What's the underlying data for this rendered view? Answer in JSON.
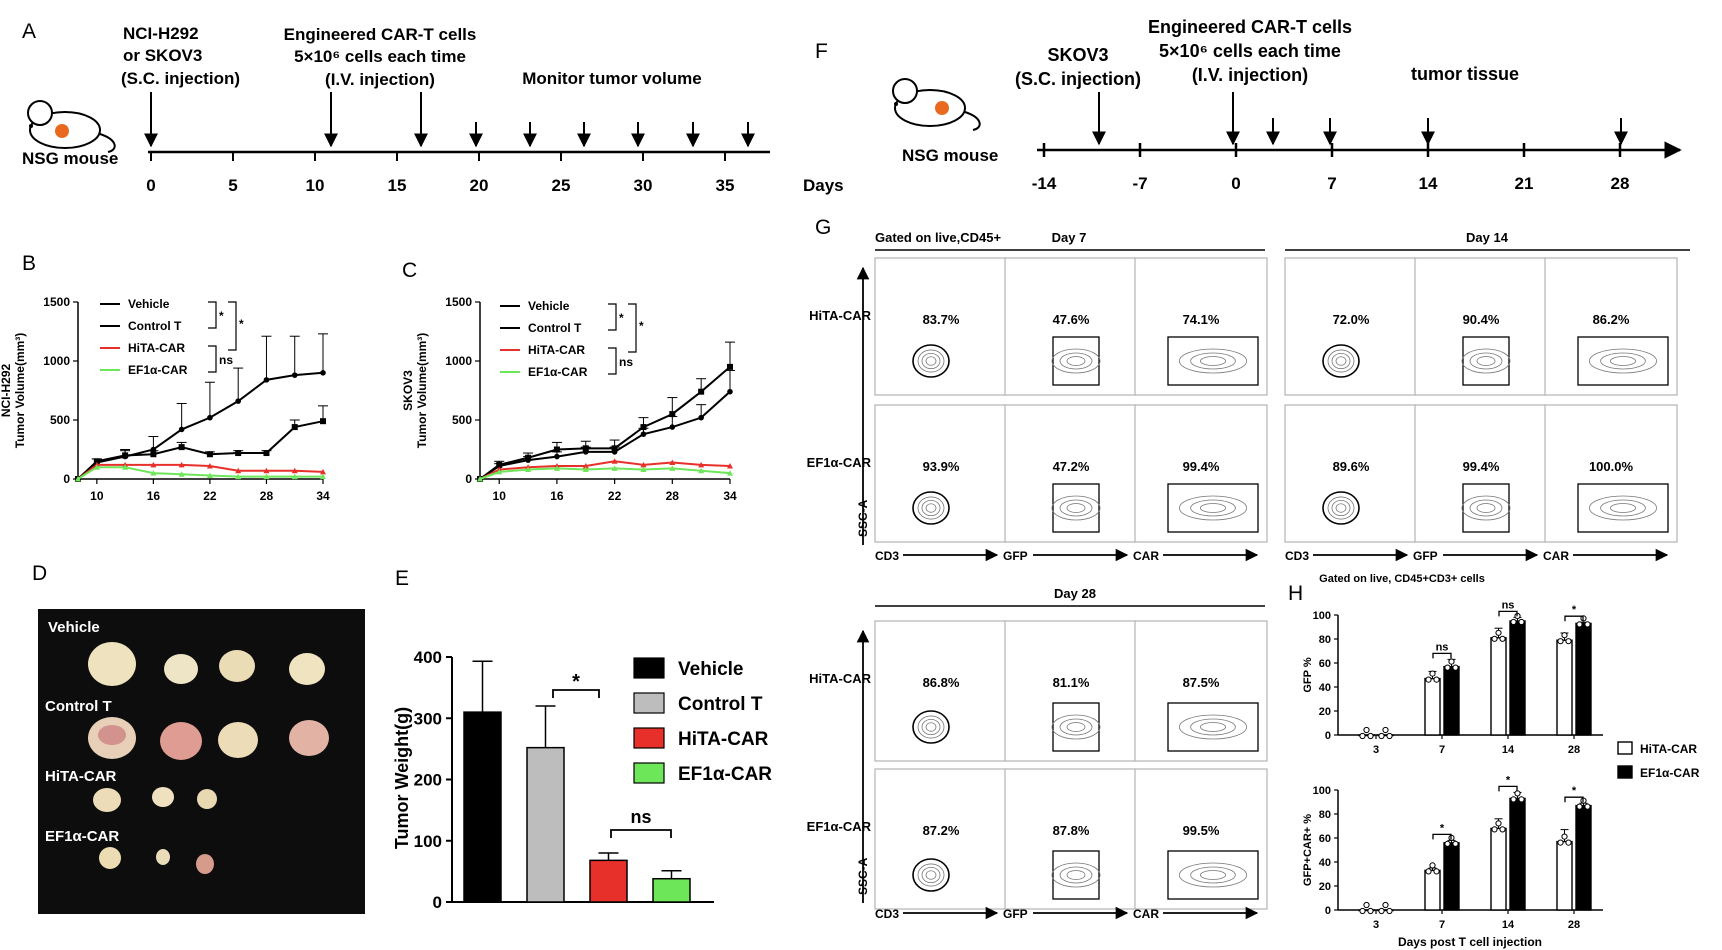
{
  "panels": {
    "A": {
      "letter": "A",
      "mouse_label": "NSG mouse",
      "inj1": [
        "NCI-H292",
        "or SKOV3",
        "(S.C. injection)"
      ],
      "inj2": [
        "Engineered CAR-T cells",
        "5×10⁶ cells each time",
        "(I.V. injection)"
      ],
      "monitor": "Monitor tumor volume",
      "ticks": [
        "0",
        "5",
        "10",
        "15",
        "20",
        "25",
        "30",
        "35"
      ],
      "unit": "Days"
    },
    "F": {
      "letter": "F",
      "mouse_label": "NSG mouse",
      "inj1": [
        "SKOV3",
        "(S.C. injection)"
      ],
      "inj2": [
        "Engineered CAR-T cells",
        "5×10⁶ cells each time",
        "(I.V. injection)"
      ],
      "tissue": "tumor tissue",
      "ticks": [
        "-14",
        "-7",
        "0",
        "7",
        "14",
        "21",
        "28"
      ]
    },
    "D": {
      "letter": "D",
      "rows": [
        "Vehicle",
        "Control T",
        "HiTA-CAR",
        "EF1α-CAR"
      ]
    },
    "G": {
      "letter": "G",
      "gate": "Gated on live,CD45+",
      "day7": "Day 7",
      "day14": "Day 14",
      "day28": "Day 28",
      "row_labels": [
        "HiTA-CAR",
        "EF1α-CAR"
      ],
      "yaxis": "SSC-A",
      "axes": [
        "CD3",
        "GFP",
        "CAR"
      ],
      "top": {
        "day7": [
          [
            "83.7%",
            "47.6%",
            "74.1%"
          ],
          [
            "93.9%",
            "47.2%",
            "99.4%"
          ]
        ],
        "day14": [
          [
            "72.0%",
            "90.4%",
            "86.2%"
          ],
          [
            "89.6%",
            "99.4%",
            "100.0%"
          ]
        ]
      },
      "bottom": {
        "day28": [
          [
            "86.8%",
            "81.1%",
            "87.5%"
          ],
          [
            "87.2%",
            "87.8%",
            "99.5%"
          ]
        ]
      }
    }
  },
  "colors": {
    "vehicle": "#000000",
    "control": "#bdbdbd",
    "hita": "#e8302a",
    "ef1a": "#6ee65a"
  },
  "chart_data": [
    {
      "panel": "B",
      "type": "line",
      "ylabel": [
        "NCI-H292",
        "Tumor Volume(mm³)"
      ],
      "x": [
        8,
        10,
        13,
        16,
        19,
        22,
        25,
        28,
        31,
        34
      ],
      "x_ticks": [
        "10",
        "16",
        "22",
        "28",
        "34"
      ],
      "y_ticks": [
        "0",
        "500",
        "1000",
        "1500"
      ],
      "ylim": [
        0,
        1500
      ],
      "series": [
        {
          "name": "Vehicle",
          "values": [
            0,
            140,
            190,
            250,
            420,
            520,
            660,
            840,
            880,
            900
          ],
          "errors": [
            0,
            30,
            60,
            110,
            220,
            300,
            280,
            370,
            330,
            330
          ]
        },
        {
          "name": "Control T",
          "values": [
            0,
            150,
            200,
            210,
            270,
            210,
            220,
            220,
            440,
            490
          ],
          "errors": [
            0,
            20,
            40,
            30,
            40,
            20,
            20,
            20,
            60,
            130
          ]
        },
        {
          "name": "HiTA-CAR",
          "values": [
            0,
            120,
            120,
            120,
            120,
            110,
            70,
            70,
            70,
            60
          ]
        },
        {
          "name": "EF1α-CAR",
          "values": [
            0,
            100,
            100,
            50,
            40,
            30,
            20,
            20,
            20,
            20
          ]
        }
      ],
      "stats": [
        "*",
        "*",
        "ns"
      ]
    },
    {
      "panel": "C",
      "type": "line",
      "ylabel": [
        "SKOV3",
        "Tumor Volume(mm³)"
      ],
      "x": [
        8,
        10,
        13,
        16,
        19,
        22,
        25,
        28,
        31,
        34
      ],
      "x_ticks": [
        "10",
        "16",
        "22",
        "28",
        "34"
      ],
      "y_ticks": [
        "0",
        "500",
        "1000",
        "1500"
      ],
      "ylim": [
        0,
        1500
      ],
      "series": [
        {
          "name": "Vehicle",
          "values": [
            0,
            110,
            160,
            190,
            230,
            230,
            380,
            440,
            520,
            740
          ],
          "errors": [
            0,
            20,
            30,
            40,
            40,
            40,
            50,
            90,
            110,
            180
          ]
        },
        {
          "name": "Control T",
          "values": [
            0,
            120,
            180,
            250,
            260,
            260,
            440,
            550,
            740,
            950
          ],
          "errors": [
            0,
            30,
            40,
            60,
            60,
            70,
            80,
            140,
            110,
            210
          ]
        },
        {
          "name": "HiTA-CAR",
          "values": [
            0,
            80,
            100,
            110,
            110,
            150,
            120,
            140,
            120,
            110
          ]
        },
        {
          "name": "EF1α-CAR",
          "values": [
            0,
            60,
            80,
            90,
            80,
            90,
            80,
            90,
            70,
            50
          ]
        }
      ],
      "stats": [
        "*",
        "*",
        "ns"
      ]
    },
    {
      "panel": "E",
      "type": "bar",
      "ylabel": "Tumor Weight(g)",
      "categories": [
        "Vehicle",
        "Control T",
        "HiTA-CAR",
        "EF1α-CAR"
      ],
      "values": [
        310,
        252,
        68,
        38
      ],
      "errors": [
        83,
        68,
        12,
        13
      ],
      "y_ticks": [
        "0",
        "100",
        "200",
        "300",
        "400"
      ],
      "ylim": [
        0,
        400
      ],
      "stats": [
        "*",
        "ns"
      ]
    },
    {
      "panel": "H",
      "type": "bar",
      "title": "Gated on live, CD45+CD3+ cells",
      "xlabel": "Days post T cell injection",
      "categories": [
        "3",
        "7",
        "14",
        "28"
      ],
      "legend": [
        "HiTA-CAR",
        "EF1α-CAR"
      ],
      "subplots": [
        {
          "ylabel": "GFP %",
          "y_ticks": [
            "0",
            "20",
            "40",
            "60",
            "80",
            "100"
          ],
          "ylim": [
            0,
            100
          ],
          "series": [
            {
              "name": "HiTA-CAR",
              "values": [
                0,
                47,
                81,
                79
              ],
              "errors": [
                0,
                6,
                8,
                6
              ]
            },
            {
              "name": "EF1α-CAR",
              "values": [
                0,
                57,
                95,
                93
              ],
              "errors": [
                0,
                6,
                3,
                1
              ]
            }
          ],
          "stats": [
            "ns",
            "ns",
            "*"
          ]
        },
        {
          "ylabel": "GFP+CAR+ %",
          "y_ticks": [
            "0",
            "20",
            "40",
            "60",
            "80",
            "100"
          ],
          "ylim": [
            0,
            100
          ],
          "series": [
            {
              "name": "HiTA-CAR",
              "values": [
                0,
                33,
                68,
                57
              ],
              "errors": [
                0,
                2,
                8,
                10
              ]
            },
            {
              "name": "EF1α-CAR",
              "values": [
                0,
                56,
                93,
                87
              ],
              "errors": [
                0,
                2,
                5,
                2
              ]
            }
          ],
          "stats": [
            "*",
            "*",
            "*"
          ]
        }
      ]
    }
  ]
}
